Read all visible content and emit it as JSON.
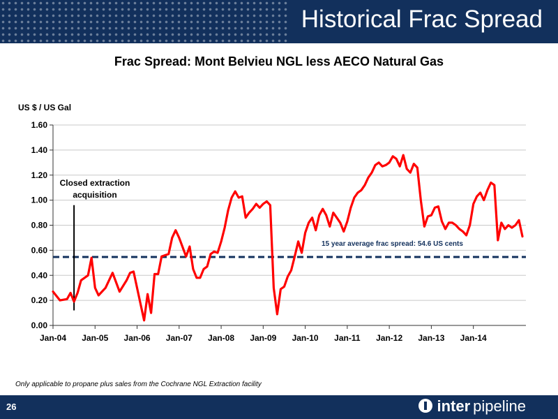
{
  "slide": {
    "title": "Historical Frac Spread",
    "page_number": "26",
    "footnote": "Only applicable to propane plus sales from the Cochrane NGL Extraction facility",
    "logo": {
      "part1": "inter",
      "part2": "pipeline"
    }
  },
  "colors": {
    "header": "#12305c",
    "series": "#ff0000",
    "average": "#12305c",
    "marker": "#000000"
  },
  "chart_data": {
    "type": "line",
    "title": "Frac Spread: Mont Belvieu NGL less AECO Natural Gas",
    "ylabel": "US $ / US Gal",
    "xlabel": "",
    "ylim": [
      0,
      1.6
    ],
    "yticks": [
      "0.00",
      "0.20",
      "0.40",
      "0.60",
      "0.80",
      "1.00",
      "1.20",
      "1.40",
      "1.60"
    ],
    "xticks": [
      "Jan-04",
      "Jan-05",
      "Jan-06",
      "Jan-07",
      "Jan-08",
      "Jan-09",
      "Jan-10",
      "Jan-11",
      "Jan-12",
      "Jan-13",
      "Jan-14"
    ],
    "grid": "horizontal",
    "series": [
      {
        "points": [
          [
            "Jan-04",
            0.27
          ],
          [
            "Mar-04",
            0.2
          ],
          [
            "May-04",
            0.21
          ],
          [
            "Jun-04",
            0.26
          ],
          [
            "Jul-04",
            0.19
          ],
          [
            "Aug-04",
            0.26
          ],
          [
            "Sep-04",
            0.36
          ],
          [
            "Nov-04",
            0.4
          ],
          [
            "Dec-04",
            0.54
          ],
          [
            "Jan-05",
            0.3
          ],
          [
            "Feb-05",
            0.24
          ],
          [
            "Apr-05",
            0.3
          ],
          [
            "Jun-05",
            0.42
          ],
          [
            "Aug-05",
            0.27
          ],
          [
            "Oct-05",
            0.36
          ],
          [
            "Nov-05",
            0.42
          ],
          [
            "Dec-05",
            0.43
          ],
          [
            "Jan-06",
            0.3
          ],
          [
            "Mar-06",
            0.04
          ],
          [
            "Apr-06",
            0.25
          ],
          [
            "May-06",
            0.1
          ],
          [
            "Jun-06",
            0.41
          ],
          [
            "Jul-06",
            0.41
          ],
          [
            "Aug-06",
            0.55
          ],
          [
            "Oct-06",
            0.57
          ],
          [
            "Nov-06",
            0.7
          ],
          [
            "Dec-06",
            0.76
          ],
          [
            "Jan-07",
            0.7
          ],
          [
            "Mar-07",
            0.55
          ],
          [
            "Apr-07",
            0.63
          ],
          [
            "May-07",
            0.45
          ],
          [
            "Jun-07",
            0.38
          ],
          [
            "Jul-07",
            0.38
          ],
          [
            "Aug-07",
            0.45
          ],
          [
            "Sep-07",
            0.47
          ],
          [
            "Oct-07",
            0.57
          ],
          [
            "Nov-07",
            0.59
          ],
          [
            "Dec-07",
            0.58
          ],
          [
            "Jan-08",
            0.67
          ],
          [
            "Feb-08",
            0.78
          ],
          [
            "Mar-08",
            0.92
          ],
          [
            "Apr-08",
            1.02
          ],
          [
            "May-08",
            1.07
          ],
          [
            "Jun-08",
            1.02
          ],
          [
            "Jul-08",
            1.03
          ],
          [
            "Aug-08",
            0.86
          ],
          [
            "Sep-08",
            0.9
          ],
          [
            "Oct-08",
            0.93
          ],
          [
            "Nov-08",
            0.97
          ],
          [
            "Dec-08",
            0.94
          ],
          [
            "Jan-09",
            0.97
          ],
          [
            "Feb-09",
            0.99
          ],
          [
            "Mar-09",
            0.96
          ],
          [
            "Apr-09",
            0.3
          ],
          [
            "May-09",
            0.09
          ],
          [
            "Jun-09",
            0.29
          ],
          [
            "Jul-09",
            0.31
          ],
          [
            "Aug-09",
            0.39
          ],
          [
            "Sep-09",
            0.44
          ],
          [
            "Oct-09",
            0.55
          ],
          [
            "Nov-09",
            0.67
          ],
          [
            "Dec-09",
            0.58
          ],
          [
            "Jan-10",
            0.74
          ],
          [
            "Feb-10",
            0.82
          ],
          [
            "Mar-10",
            0.86
          ],
          [
            "Apr-10",
            0.76
          ],
          [
            "May-10",
            0.88
          ],
          [
            "Jun-10",
            0.93
          ],
          [
            "Jul-10",
            0.88
          ],
          [
            "Aug-10",
            0.79
          ],
          [
            "Sep-10",
            0.9
          ],
          [
            "Oct-10",
            0.86
          ],
          [
            "Nov-10",
            0.82
          ],
          [
            "Dec-10",
            0.75
          ],
          [
            "Jan-11",
            0.83
          ],
          [
            "Feb-11",
            0.94
          ],
          [
            "Mar-11",
            1.02
          ],
          [
            "Apr-11",
            1.06
          ],
          [
            "May-11",
            1.08
          ],
          [
            "Jun-11",
            1.12
          ],
          [
            "Jul-11",
            1.18
          ],
          [
            "Aug-11",
            1.22
          ],
          [
            "Sep-11",
            1.28
          ],
          [
            "Oct-11",
            1.3
          ],
          [
            "Nov-11",
            1.27
          ],
          [
            "Dec-11",
            1.28
          ],
          [
            "Jan-12",
            1.3
          ],
          [
            "Feb-12",
            1.35
          ],
          [
            "Mar-12",
            1.33
          ],
          [
            "Apr-12",
            1.27
          ],
          [
            "May-12",
            1.36
          ],
          [
            "Jun-12",
            1.25
          ],
          [
            "Jul-12",
            1.22
          ],
          [
            "Aug-12",
            1.29
          ],
          [
            "Sep-12",
            1.26
          ],
          [
            "Oct-12",
            1.0
          ],
          [
            "Nov-12",
            0.79
          ],
          [
            "Dec-12",
            0.87
          ],
          [
            "Jan-13",
            0.88
          ],
          [
            "Feb-13",
            0.94
          ],
          [
            "Mar-13",
            0.95
          ],
          [
            "Apr-13",
            0.83
          ],
          [
            "May-13",
            0.77
          ],
          [
            "Jun-13",
            0.82
          ],
          [
            "Jul-13",
            0.82
          ],
          [
            "Aug-13",
            0.8
          ],
          [
            "Sep-13",
            0.77
          ],
          [
            "Oct-13",
            0.75
          ],
          [
            "Nov-13",
            0.72
          ],
          [
            "Dec-13",
            0.8
          ],
          [
            "Jan-14",
            0.97
          ],
          [
            "Feb-14",
            1.03
          ],
          [
            "Mar-14",
            1.06
          ],
          [
            "Apr-14",
            1.0
          ],
          [
            "May-14",
            1.08
          ],
          [
            "Jun-14",
            1.14
          ],
          [
            "Jul-14",
            1.12
          ],
          [
            "Aug-14",
            0.68
          ],
          [
            "Sep-14",
            0.82
          ],
          [
            "Oct-14",
            0.77
          ],
          [
            "Nov-14",
            0.8
          ],
          [
            "Dec-14",
            0.78
          ],
          [
            "Jan-15",
            0.8
          ],
          [
            "Feb-15",
            0.84
          ],
          [
            "Mar-15",
            0.71
          ]
        ]
      }
    ],
    "average_line": {
      "value": 0.546,
      "label": "15 year average frac spread: 54.6 US cents"
    },
    "annotation": {
      "label": "Closed extraction acquisition",
      "date": "Jul-04",
      "range": [
        0.12,
        0.96
      ]
    }
  }
}
